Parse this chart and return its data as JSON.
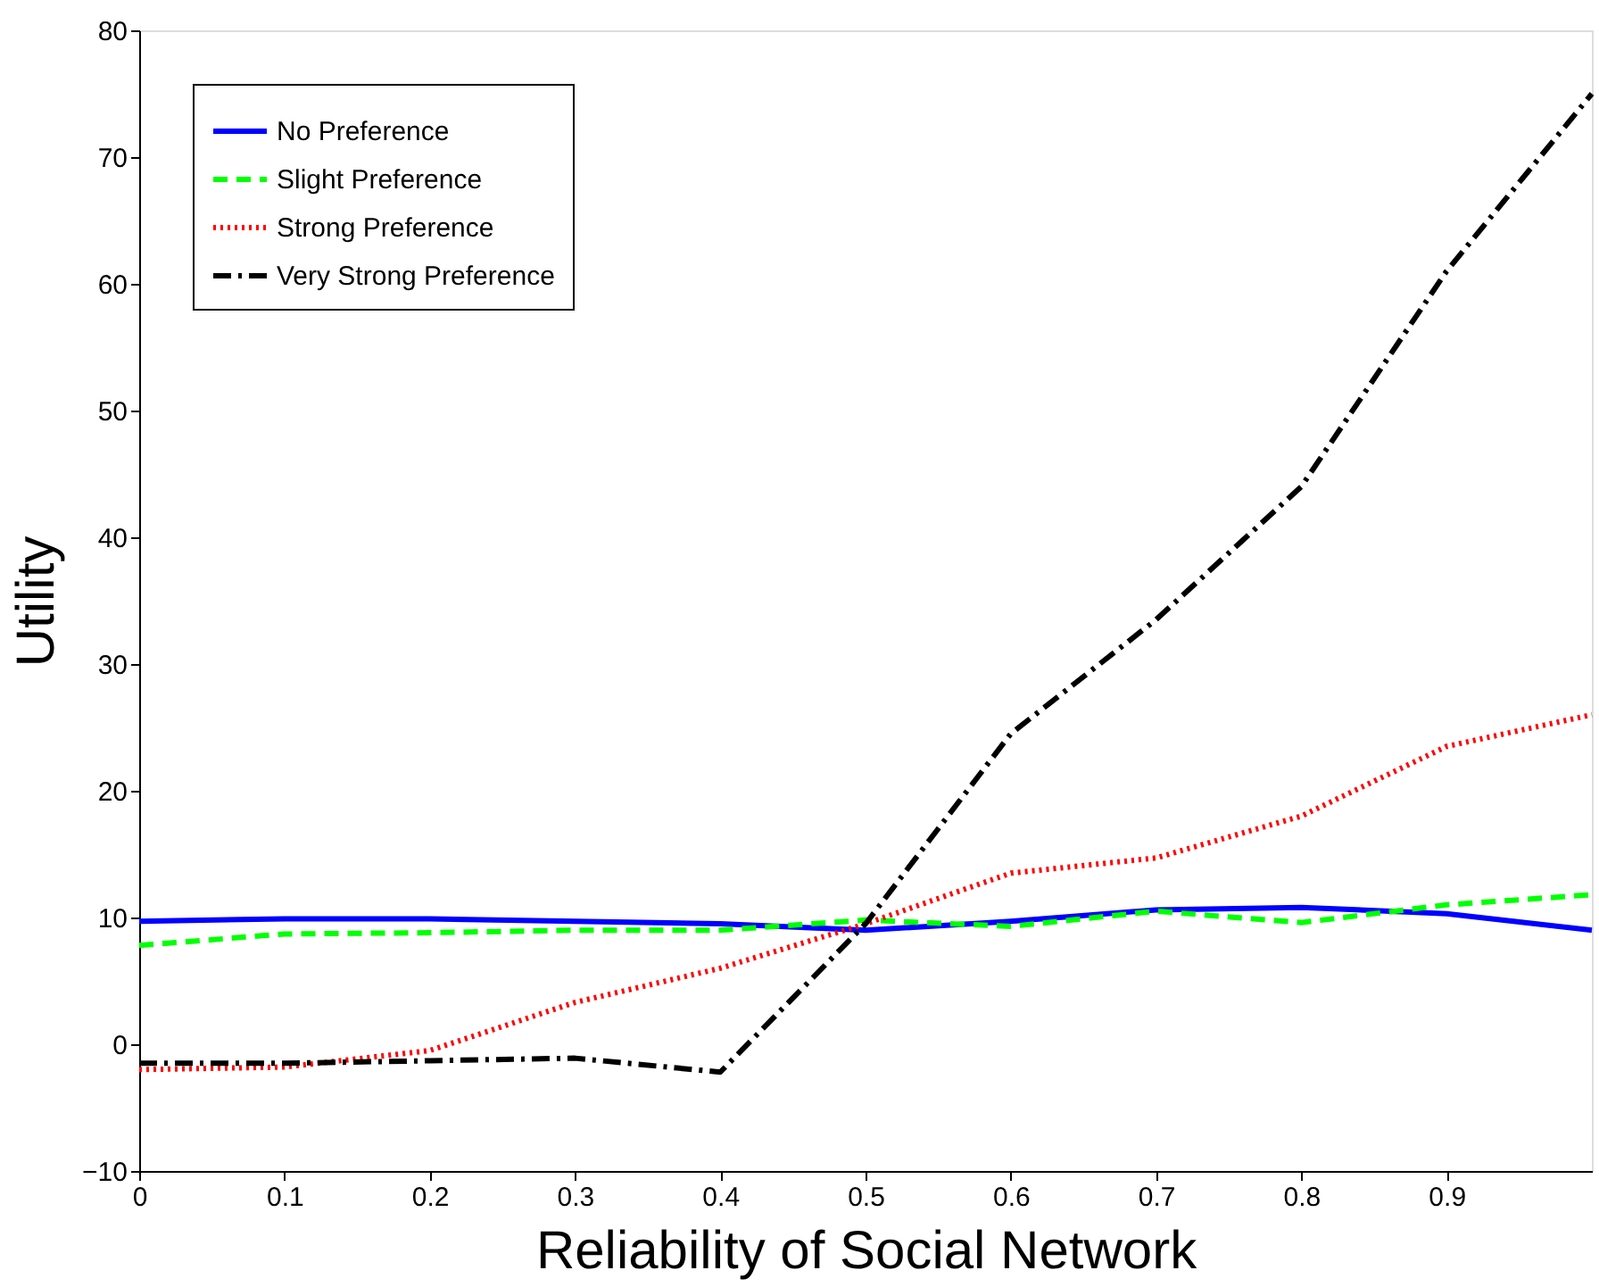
{
  "chart_data": {
    "type": "line",
    "xlabel": "Reliability of Social Network",
    "ylabel": "Utility",
    "x": [
      0,
      0.1,
      0.2,
      0.3,
      0.4,
      0.5,
      0.6,
      0.7,
      0.8,
      0.9,
      1.0
    ],
    "series": [
      {
        "name": "No Preference",
        "color": "#0000ff",
        "line_style": "solid",
        "values": [
          9.7,
          9.9,
          9.9,
          9.7,
          9.5,
          9.0,
          9.7,
          10.6,
          10.8,
          10.3,
          9.0
        ]
      },
      {
        "name": "Slight Preference",
        "color": "#00ff00",
        "line_style": "dashed",
        "values": [
          7.8,
          8.7,
          8.8,
          9.0,
          9.0,
          9.8,
          9.3,
          10.5,
          9.6,
          11.0,
          11.8
        ]
      },
      {
        "name": "Strong Preference",
        "color": "#ff0000",
        "line_style": "dotted",
        "values": [
          -2.0,
          -1.8,
          -0.5,
          3.3,
          6.0,
          9.5,
          13.5,
          14.7,
          18.0,
          23.5,
          26.0
        ]
      },
      {
        "name": "Very Strong Preference",
        "color": "#000000",
        "line_style": "dashdot",
        "values": [
          -1.5,
          -1.5,
          -1.3,
          -1.1,
          -2.2,
          9.5,
          24.5,
          33.5,
          44.0,
          61.0,
          75.0
        ]
      }
    ],
    "xlim": [
      0,
      1
    ],
    "xticks": [
      0,
      0.1,
      0.2,
      0.3,
      0.4,
      0.5,
      0.6,
      0.7,
      0.8,
      0.9
    ],
    "ylim": [
      -10,
      80
    ],
    "yticks": [
      -10,
      0,
      10,
      20,
      30,
      40,
      50,
      60,
      70,
      80
    ],
    "grid": false,
    "legend": "top left",
    "marker": "none"
  }
}
